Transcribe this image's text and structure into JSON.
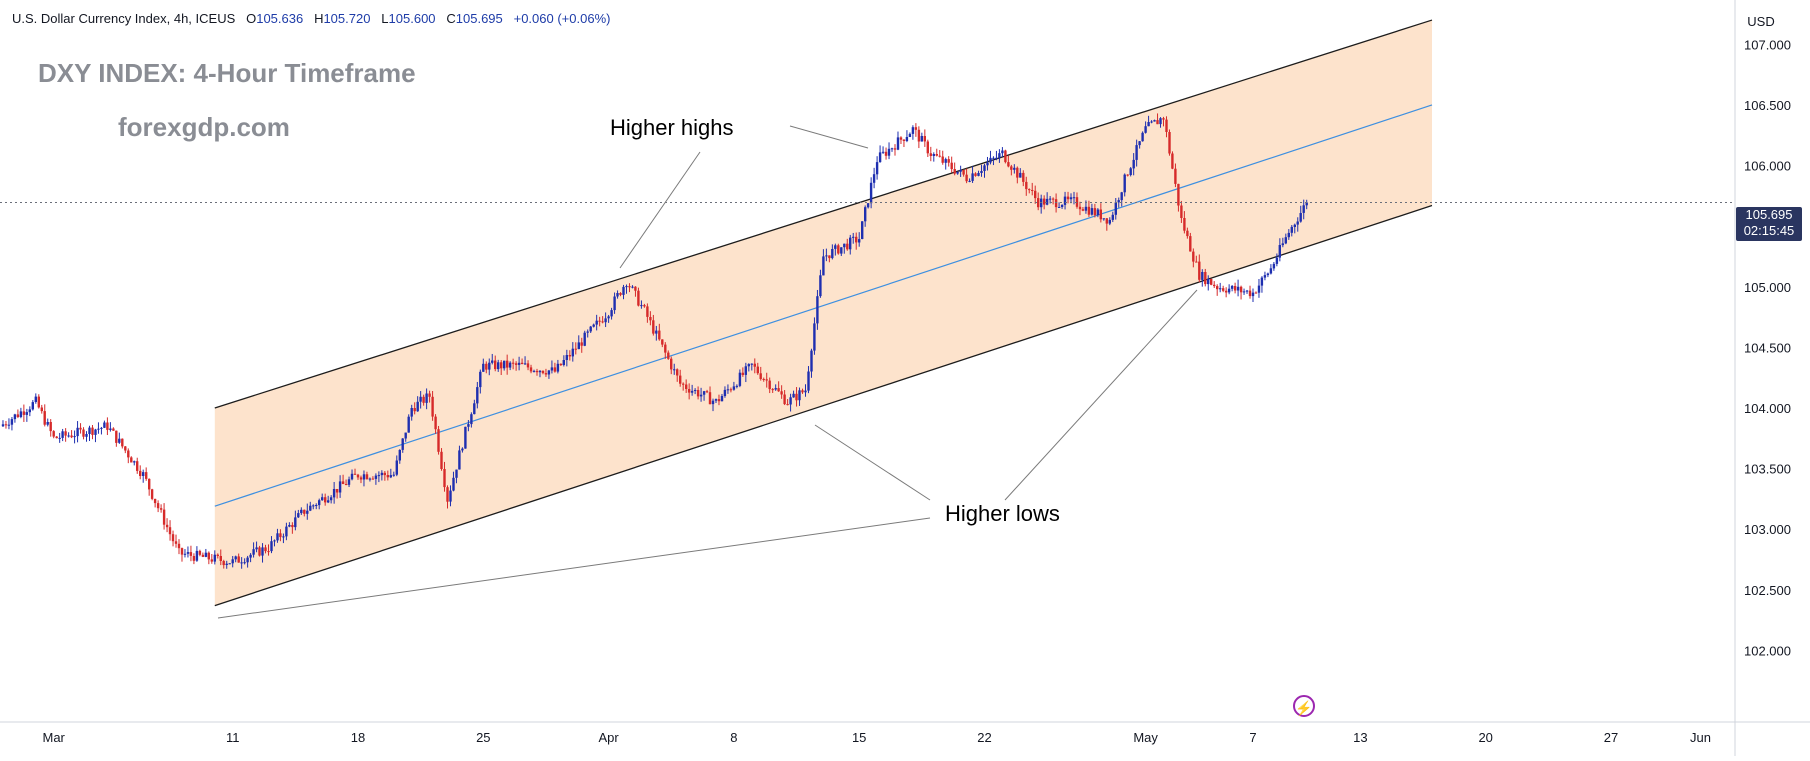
{
  "header": {
    "symbol": "U.S. Dollar Currency Index, 4h, ICEUS",
    "open_label": "O",
    "open": "105.636",
    "high_label": "H",
    "high": "105.720",
    "low_label": "L",
    "low": "105.600",
    "close_label": "C",
    "close": "105.695",
    "change": "+0.060 (+0.06%)"
  },
  "overlay": {
    "title": "DXY INDEX: 4-Hour Timeframe",
    "site": "forexgdp.com",
    "higher_highs": "Higher highs",
    "higher_lows": "Higher lows"
  },
  "price_scale": {
    "currency": "USD",
    "last_price": "105.695",
    "countdown": "02:15:45"
  },
  "icons": {
    "alert": "lightning-bolt-icon"
  },
  "colors": {
    "up": "#1e2fb0",
    "down": "#d62a2a",
    "channel_fill": "#fde3cc",
    "channel_line": "#1c1c1c",
    "midline": "#3d8fe0"
  },
  "chart_data": {
    "type": "candlestick",
    "x_ticks": [
      "Mar",
      "11",
      "18",
      "25",
      "Apr",
      "8",
      "15",
      "22",
      "May",
      "7",
      "13",
      "20",
      "27",
      "Jun"
    ],
    "y_ticks": [
      "102.000",
      "102.500",
      "103.000",
      "103.500",
      "104.000",
      "104.500",
      "105.000",
      "105.500",
      "106.000",
      "106.500",
      "107.000"
    ],
    "ylim": [
      101.55,
      107.25
    ],
    "xlim": [
      "2024-02-27",
      "2024-06-05"
    ],
    "last_price": 105.695,
    "channel": {
      "lower": [
        [
          "2024-03-10",
          102.37
        ],
        [
          "2024-05-17",
          105.67
        ]
      ],
      "upper": [
        [
          "2024-03-10",
          104.0
        ],
        [
          "2024-05-17",
          107.2
        ]
      ],
      "mid": [
        [
          "2024-03-10",
          103.19
        ],
        [
          "2024-05-17",
          106.5
        ]
      ]
    },
    "anchors": [
      [
        "2024-02-27",
        103.85
      ],
      [
        "2024-02-29",
        104.05
      ],
      [
        "2024-03-01",
        103.75
      ],
      [
        "2024-03-04",
        103.85
      ],
      [
        "2024-03-06",
        103.45
      ],
      [
        "2024-03-08",
        102.8
      ],
      [
        "2024-03-11",
        102.73
      ],
      [
        "2024-03-13",
        102.85
      ],
      [
        "2024-03-15",
        103.15
      ],
      [
        "2024-03-18",
        103.45
      ],
      [
        "2024-03-20",
        103.45
      ],
      [
        "2024-03-21",
        104.0
      ],
      [
        "2024-03-22",
        104.1
      ],
      [
        "2024-03-23",
        103.25
      ],
      [
        "2024-03-25",
        104.35
      ],
      [
        "2024-03-27",
        104.35
      ],
      [
        "2024-03-29",
        104.3
      ],
      [
        "2024-04-01",
        104.8
      ],
      [
        "2024-04-02",
        105.05
      ],
      [
        "2024-04-03",
        104.8
      ],
      [
        "2024-04-05",
        104.2
      ],
      [
        "2024-04-07",
        104.05
      ],
      [
        "2024-04-09",
        104.35
      ],
      [
        "2024-04-11",
        104.05
      ],
      [
        "2024-04-12",
        104.15
      ],
      [
        "2024-04-13",
        105.25
      ],
      [
        "2024-04-15",
        105.4
      ],
      [
        "2024-04-16",
        106.05
      ],
      [
        "2024-04-18",
        106.3
      ],
      [
        "2024-04-19",
        106.1
      ],
      [
        "2024-04-21",
        105.9
      ],
      [
        "2024-04-23",
        106.1
      ],
      [
        "2024-04-25",
        105.7
      ],
      [
        "2024-04-27",
        105.7
      ],
      [
        "2024-04-29",
        105.55
      ],
      [
        "2024-04-30",
        105.95
      ],
      [
        "2024-05-01",
        106.3
      ],
      [
        "2024-05-02",
        106.4
      ],
      [
        "2024-05-03",
        105.55
      ],
      [
        "2024-05-04",
        105.1
      ],
      [
        "2024-05-05",
        105.0
      ],
      [
        "2024-05-07",
        104.95
      ],
      [
        "2024-05-08",
        105.15
      ],
      [
        "2024-05-09",
        105.45
      ],
      [
        "2024-05-10",
        105.695
      ]
    ]
  }
}
